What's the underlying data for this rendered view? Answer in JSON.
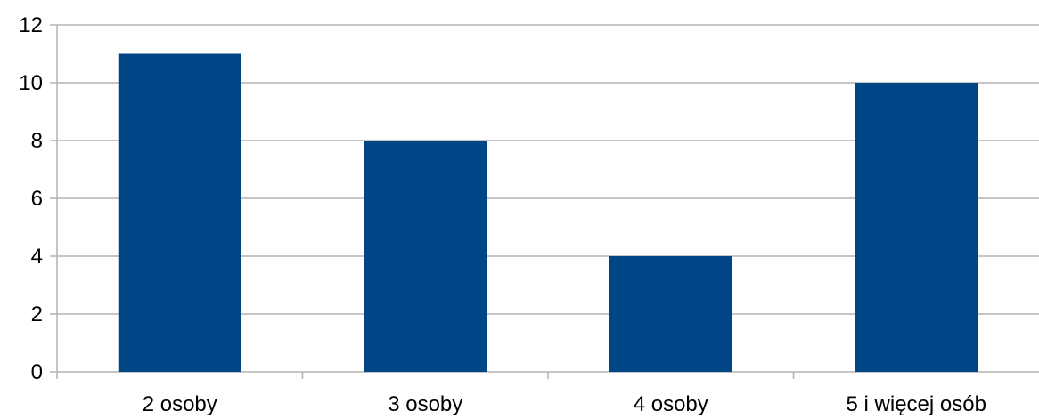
{
  "chart_data": {
    "type": "bar",
    "categories": [
      "2 osoby",
      "3 osoby",
      "4 osoby",
      "5 i więcej osób"
    ],
    "values": [
      11,
      8,
      4,
      10
    ],
    "y_ticks": [
      "0",
      "2",
      "4",
      "6",
      "8",
      "10",
      "12"
    ],
    "ylim": [
      0,
      12
    ],
    "grid": true,
    "legend": "none",
    "bar_color": "#004586",
    "grid_color": "#b3b3b3"
  }
}
